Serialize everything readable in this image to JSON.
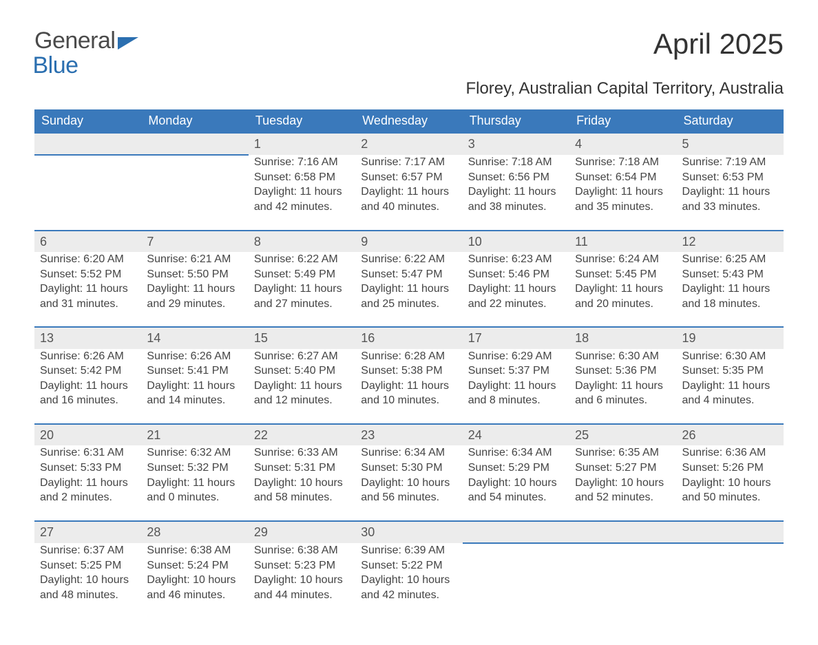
{
  "logo": {
    "word1": "General",
    "word2": "Blue"
  },
  "title": "April 2025",
  "location": "Florey, Australian Capital Territory, Australia",
  "colors": {
    "header_bg": "#3a79bb",
    "header_text": "#ffffff",
    "daynum_bg": "#ececec",
    "row_border": "#3a79bb",
    "body_text": "#444444",
    "logo_gray": "#4a4a4a",
    "logo_blue": "#2b6fb0",
    "page_bg": "#ffffff"
  },
  "typography": {
    "title_fontsize_pt": 32,
    "location_fontsize_pt": 18,
    "header_fontsize_pt": 14,
    "daynum_fontsize_pt": 14,
    "cell_fontsize_pt": 12
  },
  "calendar": {
    "type": "table",
    "day_headers": [
      "Sunday",
      "Monday",
      "Tuesday",
      "Wednesday",
      "Thursday",
      "Friday",
      "Saturday"
    ],
    "weeks": [
      [
        null,
        null,
        {
          "n": "1",
          "sunrise": "7:16 AM",
          "sunset": "6:58 PM",
          "daylight": "11 hours and 42 minutes."
        },
        {
          "n": "2",
          "sunrise": "7:17 AM",
          "sunset": "6:57 PM",
          "daylight": "11 hours and 40 minutes."
        },
        {
          "n": "3",
          "sunrise": "7:18 AM",
          "sunset": "6:56 PM",
          "daylight": "11 hours and 38 minutes."
        },
        {
          "n": "4",
          "sunrise": "7:18 AM",
          "sunset": "6:54 PM",
          "daylight": "11 hours and 35 minutes."
        },
        {
          "n": "5",
          "sunrise": "7:19 AM",
          "sunset": "6:53 PM",
          "daylight": "11 hours and 33 minutes."
        }
      ],
      [
        {
          "n": "6",
          "sunrise": "6:20 AM",
          "sunset": "5:52 PM",
          "daylight": "11 hours and 31 minutes."
        },
        {
          "n": "7",
          "sunrise": "6:21 AM",
          "sunset": "5:50 PM",
          "daylight": "11 hours and 29 minutes."
        },
        {
          "n": "8",
          "sunrise": "6:22 AM",
          "sunset": "5:49 PM",
          "daylight": "11 hours and 27 minutes."
        },
        {
          "n": "9",
          "sunrise": "6:22 AM",
          "sunset": "5:47 PM",
          "daylight": "11 hours and 25 minutes."
        },
        {
          "n": "10",
          "sunrise": "6:23 AM",
          "sunset": "5:46 PM",
          "daylight": "11 hours and 22 minutes."
        },
        {
          "n": "11",
          "sunrise": "6:24 AM",
          "sunset": "5:45 PM",
          "daylight": "11 hours and 20 minutes."
        },
        {
          "n": "12",
          "sunrise": "6:25 AM",
          "sunset": "5:43 PM",
          "daylight": "11 hours and 18 minutes."
        }
      ],
      [
        {
          "n": "13",
          "sunrise": "6:26 AM",
          "sunset": "5:42 PM",
          "daylight": "11 hours and 16 minutes."
        },
        {
          "n": "14",
          "sunrise": "6:26 AM",
          "sunset": "5:41 PM",
          "daylight": "11 hours and 14 minutes."
        },
        {
          "n": "15",
          "sunrise": "6:27 AM",
          "sunset": "5:40 PM",
          "daylight": "11 hours and 12 minutes."
        },
        {
          "n": "16",
          "sunrise": "6:28 AM",
          "sunset": "5:38 PM",
          "daylight": "11 hours and 10 minutes."
        },
        {
          "n": "17",
          "sunrise": "6:29 AM",
          "sunset": "5:37 PM",
          "daylight": "11 hours and 8 minutes."
        },
        {
          "n": "18",
          "sunrise": "6:30 AM",
          "sunset": "5:36 PM",
          "daylight": "11 hours and 6 minutes."
        },
        {
          "n": "19",
          "sunrise": "6:30 AM",
          "sunset": "5:35 PM",
          "daylight": "11 hours and 4 minutes."
        }
      ],
      [
        {
          "n": "20",
          "sunrise": "6:31 AM",
          "sunset": "5:33 PM",
          "daylight": "11 hours and 2 minutes."
        },
        {
          "n": "21",
          "sunrise": "6:32 AM",
          "sunset": "5:32 PM",
          "daylight": "11 hours and 0 minutes."
        },
        {
          "n": "22",
          "sunrise": "6:33 AM",
          "sunset": "5:31 PM",
          "daylight": "10 hours and 58 minutes."
        },
        {
          "n": "23",
          "sunrise": "6:34 AM",
          "sunset": "5:30 PM",
          "daylight": "10 hours and 56 minutes."
        },
        {
          "n": "24",
          "sunrise": "6:34 AM",
          "sunset": "5:29 PM",
          "daylight": "10 hours and 54 minutes."
        },
        {
          "n": "25",
          "sunrise": "6:35 AM",
          "sunset": "5:27 PM",
          "daylight": "10 hours and 52 minutes."
        },
        {
          "n": "26",
          "sunrise": "6:36 AM",
          "sunset": "5:26 PM",
          "daylight": "10 hours and 50 minutes."
        }
      ],
      [
        {
          "n": "27",
          "sunrise": "6:37 AM",
          "sunset": "5:25 PM",
          "daylight": "10 hours and 48 minutes."
        },
        {
          "n": "28",
          "sunrise": "6:38 AM",
          "sunset": "5:24 PM",
          "daylight": "10 hours and 46 minutes."
        },
        {
          "n": "29",
          "sunrise": "6:38 AM",
          "sunset": "5:23 PM",
          "daylight": "10 hours and 44 minutes."
        },
        {
          "n": "30",
          "sunrise": "6:39 AM",
          "sunset": "5:22 PM",
          "daylight": "10 hours and 42 minutes."
        },
        null,
        null,
        null
      ]
    ],
    "labels": {
      "sunrise": "Sunrise: ",
      "sunset": "Sunset: ",
      "daylight": "Daylight: "
    }
  }
}
